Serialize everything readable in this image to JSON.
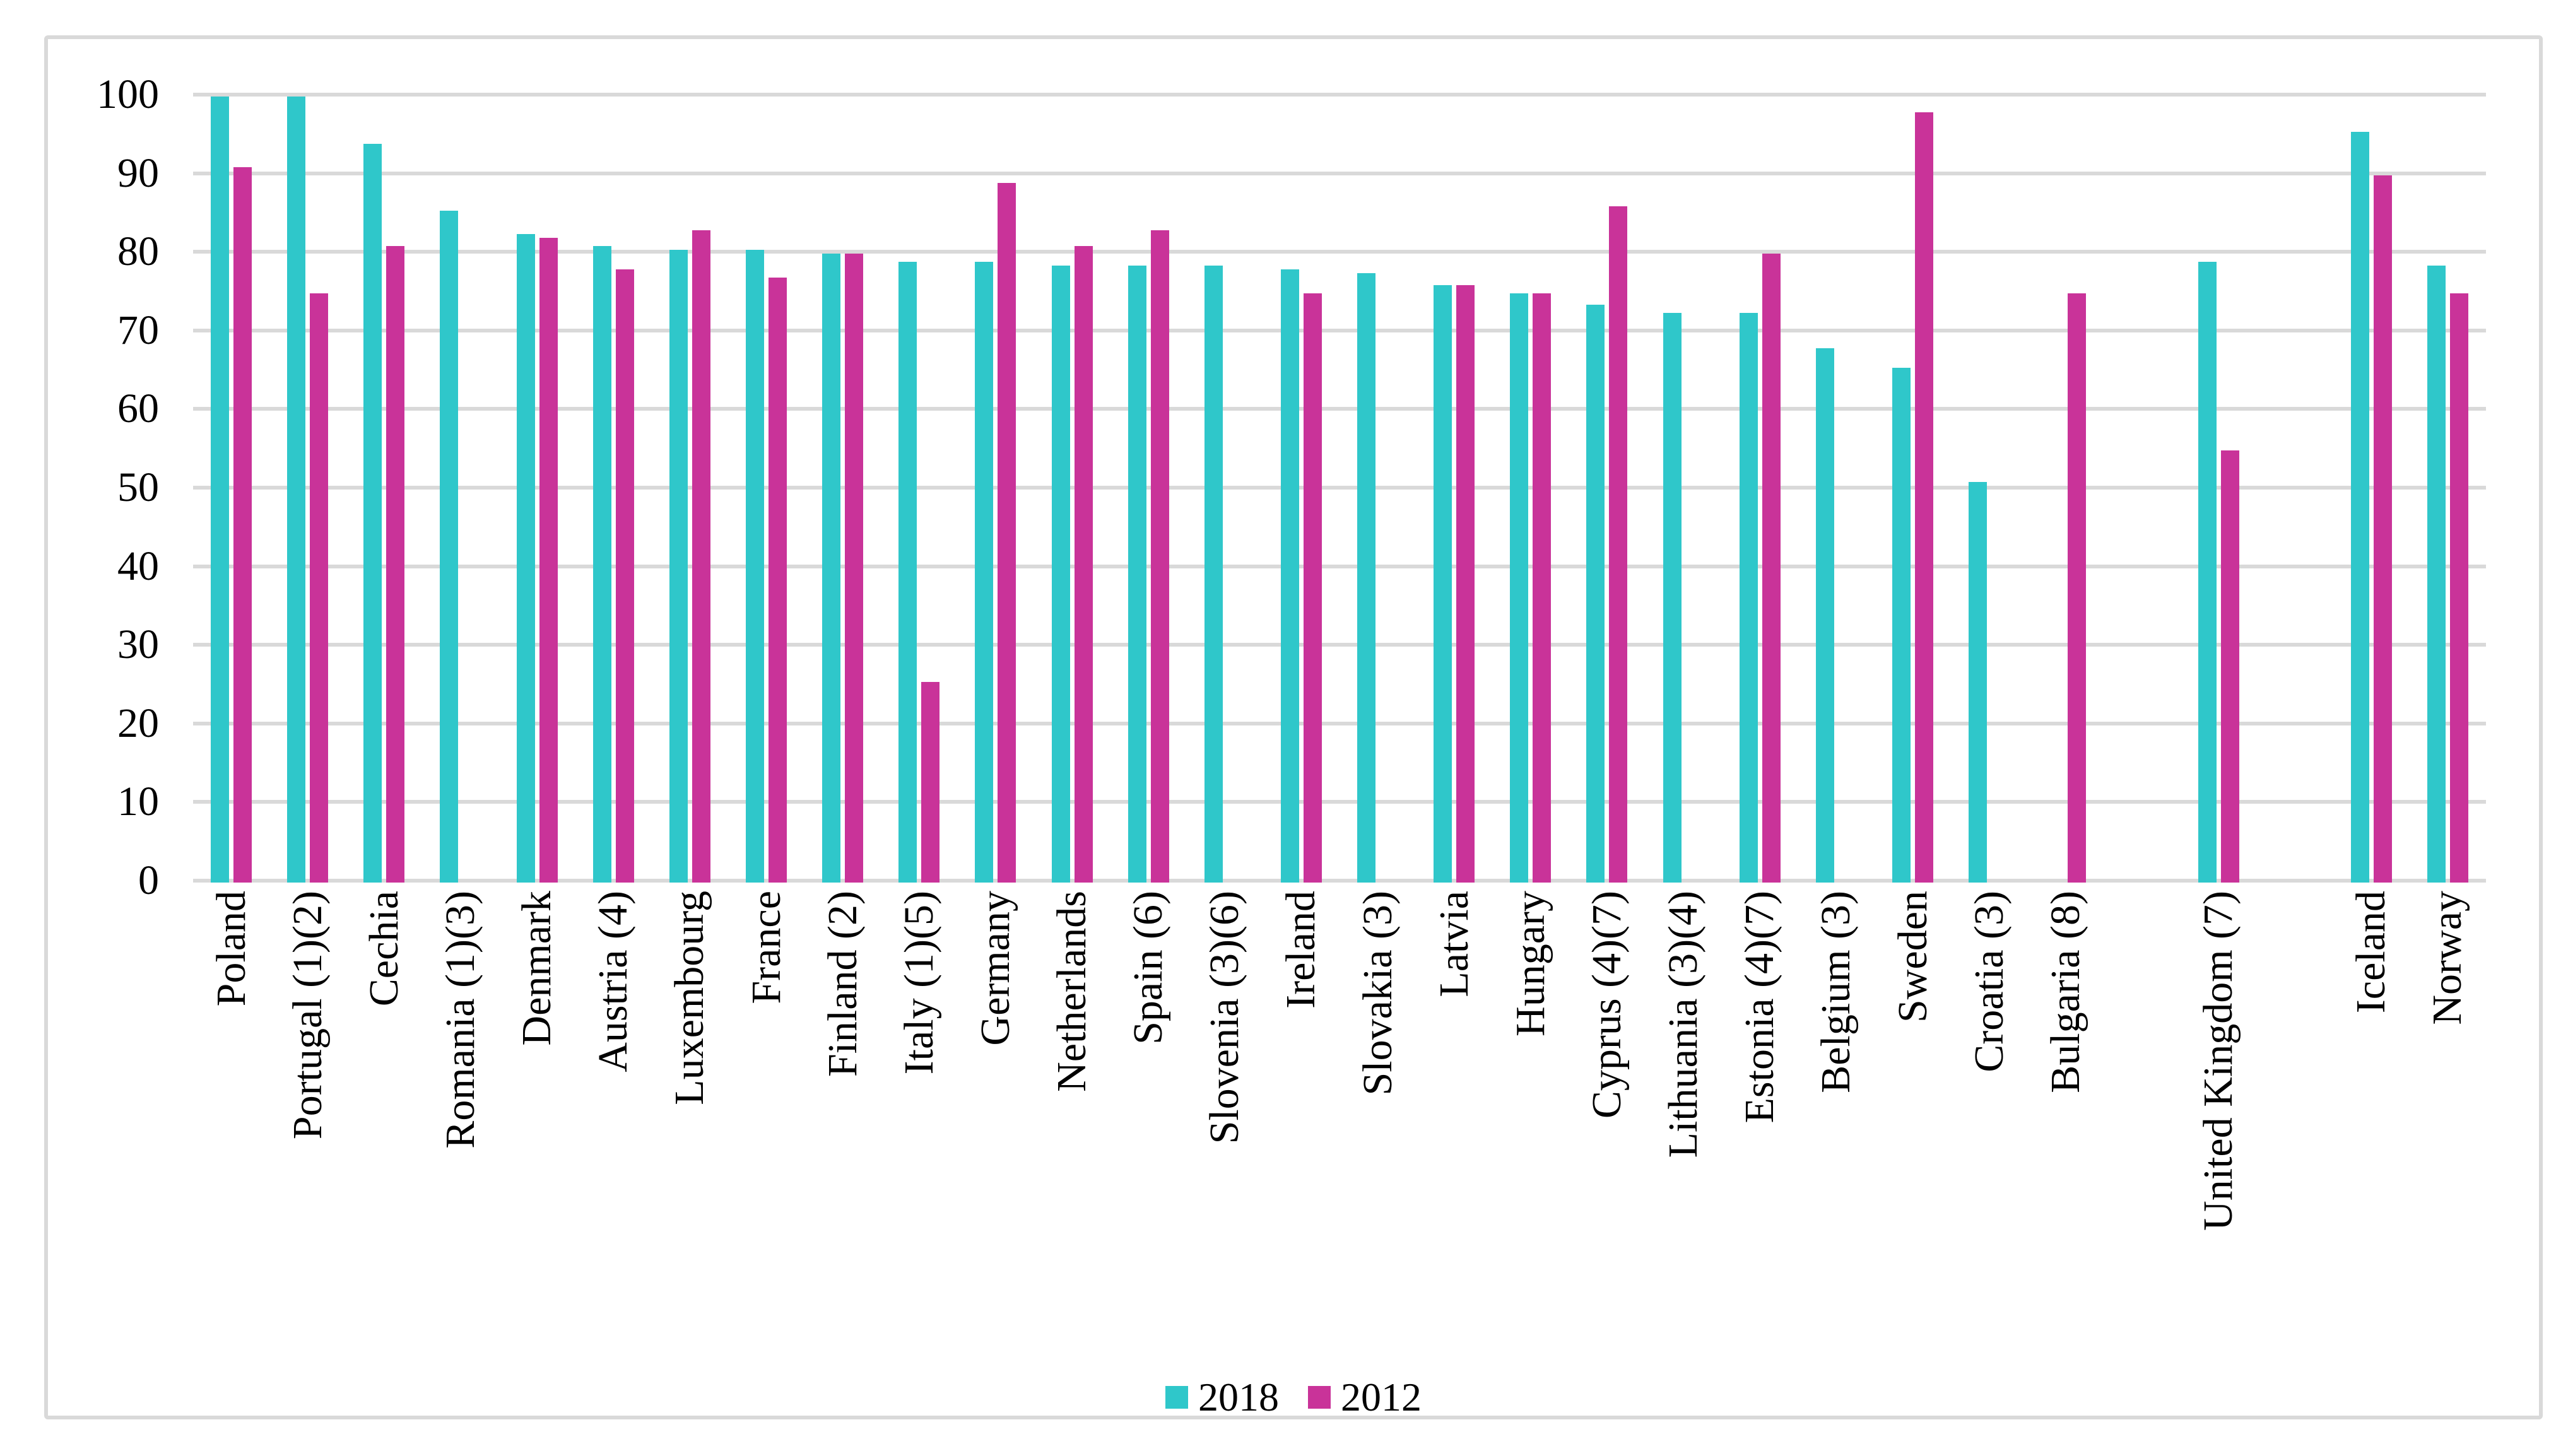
{
  "figure": {
    "background": "#ffffff",
    "border_color": "#d9d9d9",
    "gridline_color": "#d9d9d9",
    "axis_line_color": "#d9d9d9"
  },
  "legend": {
    "items": [
      {
        "label": "2018",
        "color": "#2fc7ca"
      },
      {
        "label": "2012",
        "color": "#c93399"
      }
    ]
  },
  "chart_data": {
    "type": "bar",
    "title": "",
    "xlabel": "",
    "ylabel": "",
    "ylim": [
      0,
      100
    ],
    "yticks": [
      0,
      10,
      20,
      30,
      40,
      50,
      60,
      70,
      80,
      90,
      100
    ],
    "grid": "horizontal-only",
    "legend_position": "bottom-center",
    "categories": [
      "Poland",
      "Portugal (1)(2)",
      "Cechia",
      "Romania (1)(3)",
      "Denmark",
      "Austria (4)",
      "Luxembourg",
      "France",
      "Finland (2)",
      "Italy (1)(5)",
      "Germany",
      "Netherlands",
      "Spain (6)",
      "Slovenia (3)(6)",
      "Ireland",
      "Slovakia (3)",
      "Latvia",
      "Hungary",
      "Cyprus (4)(7)",
      "Lithuania (3)(4)",
      "Estonia (4)(7)",
      "Belgium (3)",
      "Sweden",
      "Croatia (3)",
      "Bulgaria (8)",
      "",
      "United Kingdom (7)",
      "",
      "Iceland",
      "Norway"
    ],
    "series": [
      {
        "name": "2018",
        "color": "#2fc7ca",
        "values": [
          100,
          100,
          94,
          85.5,
          82.5,
          81,
          80.5,
          80.5,
          80,
          79,
          79,
          78.5,
          78.5,
          78.5,
          78,
          77.5,
          76,
          75,
          73.5,
          72.5,
          72.5,
          68,
          65.5,
          51,
          null,
          null,
          79,
          null,
          95.5,
          78.5
        ]
      },
      {
        "name": "2012",
        "color": "#c93399",
        "values": [
          91,
          75,
          81,
          null,
          82,
          78,
          83,
          77,
          80,
          25.5,
          89,
          81,
          83,
          null,
          75,
          null,
          76,
          75,
          86,
          null,
          80,
          null,
          98,
          null,
          75,
          null,
          55,
          null,
          90,
          75
        ]
      }
    ]
  }
}
